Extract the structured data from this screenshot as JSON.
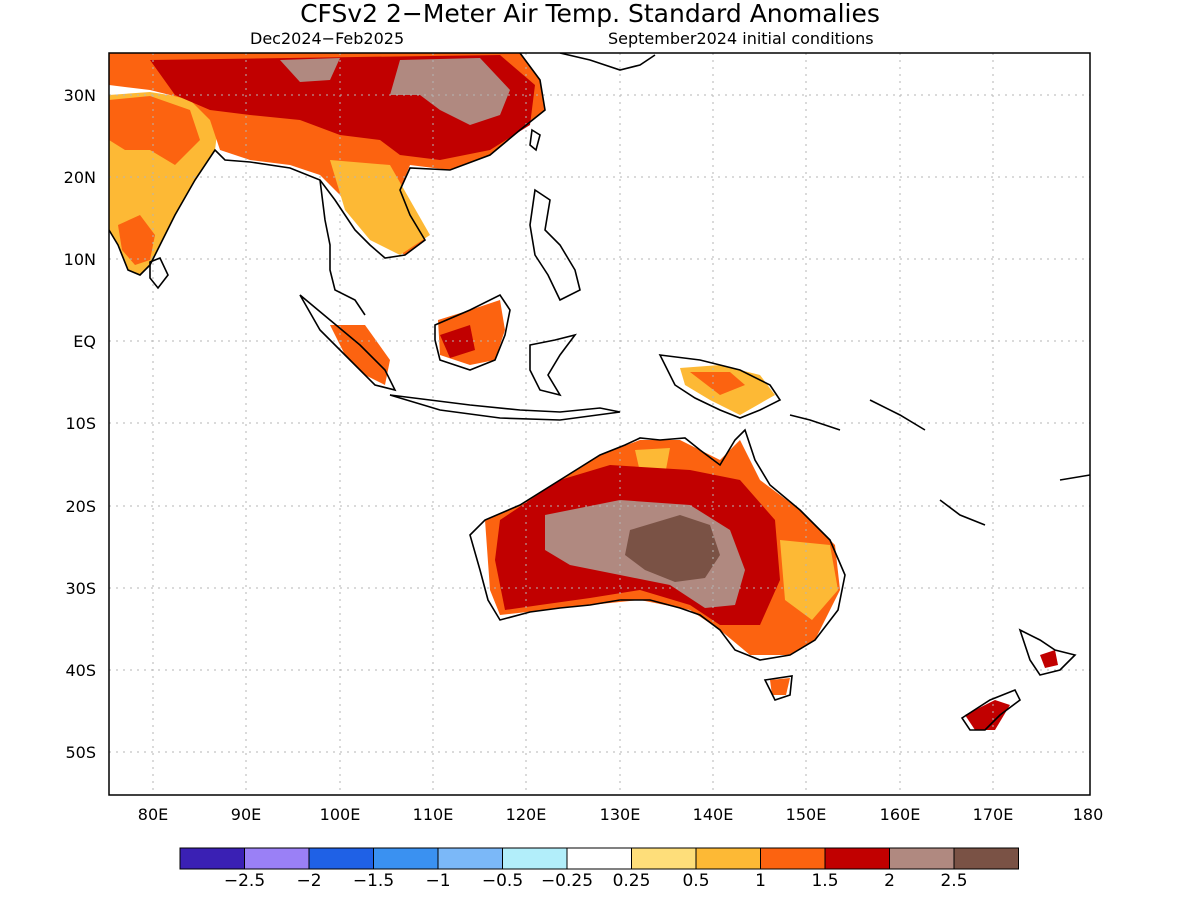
{
  "title": "CFSv2 2−Meter Air Temp. Standard Anomalies",
  "period": "Dec2024−Feb2025",
  "initial_conditions": "September2024 initial conditions",
  "lon_ticks": [
    "80E",
    "90E",
    "100E",
    "110E",
    "120E",
    "130E",
    "140E",
    "150E",
    "160E",
    "170E",
    "180"
  ],
  "lat_ticks": [
    "30N",
    "20N",
    "10N",
    "EQ",
    "10S",
    "20S",
    "30S",
    "40S",
    "50S"
  ],
  "colorbar": {
    "colors": [
      "#3a20b4",
      "#9a80f6",
      "#1f61e6",
      "#3a91f1",
      "#7bb8f8",
      "#b2eefa",
      "#ffffff",
      "#fede7a",
      "#fdb935",
      "#fc6310",
      "#c10000",
      "#b08980",
      "#7a5245"
    ],
    "labels": [
      "−2.5",
      "−2",
      "−1.5",
      "−1",
      "−0.5",
      "−0.25",
      "0.25",
      "0.5",
      "1",
      "1.5",
      "2",
      "2.5"
    ]
  }
}
